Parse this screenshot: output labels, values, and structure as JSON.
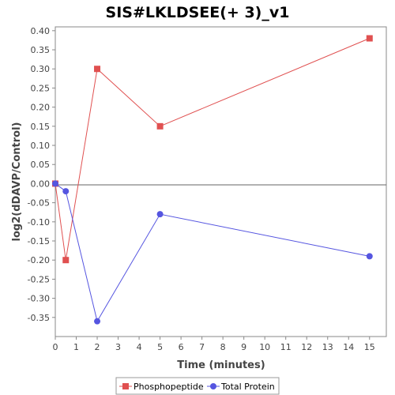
{
  "chart_data": {
    "type": "line",
    "title": "SIS#LKLDSEE(+ 3)_v1",
    "xlabel": "Time (minutes)",
    "ylabel": "log2(dDAVP/Control)",
    "xlim": [
      0,
      15.8
    ],
    "ylim": [
      -0.4,
      0.41
    ],
    "x_ticks": [
      0,
      1,
      2,
      3,
      4,
      5,
      6,
      7,
      8,
      9,
      10,
      11,
      12,
      13,
      14,
      15
    ],
    "y_ticks": [
      0.4,
      0.35,
      0.3,
      0.25,
      0.2,
      0.15,
      0.1,
      0.05,
      0.0,
      -0.05,
      -0.1,
      -0.15,
      -0.2,
      -0.25,
      -0.3,
      -0.35
    ],
    "y_tick_labels": [
      "0.40",
      "0.35",
      "0.30",
      "0.25",
      "0.20",
      "0.15",
      "0.10",
      "0.05",
      "0.00",
      "-0.05",
      "-0.10",
      "-0.15",
      "-0.20",
      "-0.25",
      "-0.30",
      "-0.35"
    ],
    "zero_line": true,
    "grid": false,
    "legend_position": "bottom",
    "series": [
      {
        "name": "Phosphopeptide",
        "color": "#e05050",
        "marker": "square",
        "x": [
          0,
          0.5,
          2,
          5,
          15
        ],
        "y": [
          0.0,
          -0.2,
          0.3,
          0.15,
          0.38
        ]
      },
      {
        "name": "Total Protein",
        "color": "#5555e0",
        "marker": "circle",
        "x": [
          0,
          0.5,
          2,
          5,
          15
        ],
        "y": [
          0.0,
          -0.02,
          -0.36,
          -0.08,
          -0.19
        ]
      }
    ]
  }
}
